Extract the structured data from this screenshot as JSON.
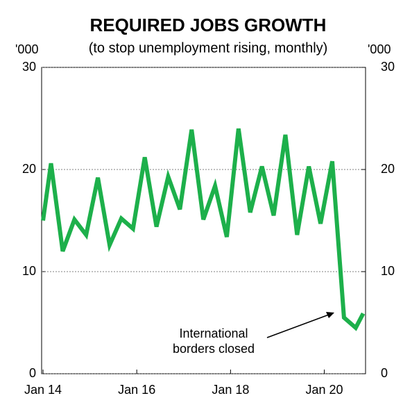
{
  "chart_data": {
    "type": "line",
    "title": "REQUIRED JOBS GROWTH",
    "subtitle": "(to stop unemployment rising, monthly)",
    "y_unit": "'000",
    "y2_unit": "'000",
    "annotation": [
      "International",
      "borders closed"
    ],
    "x": [
      2014.0,
      2014.17,
      2014.42,
      2014.67,
      2014.92,
      2015.17,
      2015.42,
      2015.67,
      2015.92,
      2016.17,
      2016.42,
      2016.67,
      2016.92,
      2017.17,
      2017.42,
      2017.67,
      2017.92,
      2018.17,
      2018.42,
      2018.67,
      2018.92,
      2019.17,
      2019.42,
      2019.67,
      2019.92,
      2020.17,
      2020.42,
      2020.67,
      2020.83
    ],
    "series": [
      {
        "color": "#1db04b",
        "values": [
          15,
          20.6,
          12,
          15.1,
          13.6,
          19.2,
          12.6,
          15.2,
          14.2,
          21.2,
          14.4,
          19.3,
          16.1,
          23.9,
          15.1,
          18.4,
          13.4,
          24.0,
          15.8,
          20.3,
          15.5,
          23.4,
          13.6,
          20.3,
          14.7,
          20.8,
          5.5,
          4.5,
          5.9
        ]
      }
    ],
    "xlim": [
      2013.97,
      2020.88
    ],
    "xticks": [
      {
        "value": 2014,
        "label": "Jan 14"
      },
      {
        "value": 2016,
        "label": "Jan 16"
      },
      {
        "value": 2018,
        "label": "Jan 18"
      },
      {
        "value": 2020,
        "label": "Jan 20"
      }
    ],
    "ylim": [
      0,
      30
    ],
    "yticks": [
      0,
      10,
      20,
      30
    ],
    "y2lim": [
      0,
      30
    ],
    "y2ticks": [
      0,
      10,
      20,
      30
    ],
    "grid": true
  }
}
